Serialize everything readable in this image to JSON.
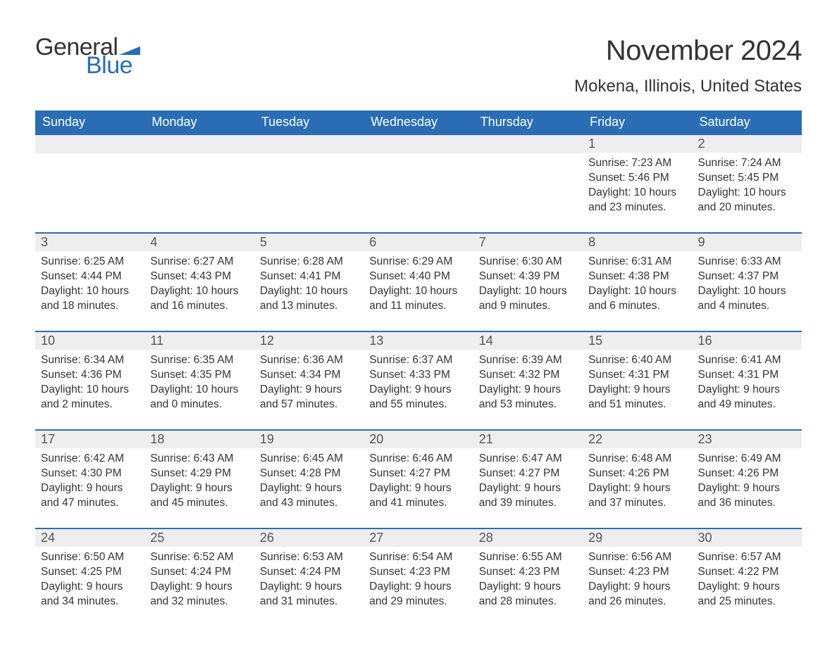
{
  "brand": {
    "word1": "General",
    "word2": "Blue",
    "flag_color": "#2a6db5"
  },
  "title": "November 2024",
  "location": "Mokena, Illinois, United States",
  "colors": {
    "header_bg": "#2a6db5",
    "header_text": "#ffffff",
    "week_border": "#2a6db5",
    "daynum_bg": "#eeeeee",
    "text": "#333333"
  },
  "day_labels": [
    "Sunday",
    "Monday",
    "Tuesday",
    "Wednesday",
    "Thursday",
    "Friday",
    "Saturday"
  ],
  "labels": {
    "sunrise": "Sunrise:",
    "sunset": "Sunset:",
    "daylight": "Daylight:"
  },
  "weeks": [
    [
      null,
      null,
      null,
      null,
      null,
      {
        "n": "1",
        "sunrise": "7:23 AM",
        "sunset": "5:46 PM",
        "daylight": "10 hours and 23 minutes."
      },
      {
        "n": "2",
        "sunrise": "7:24 AM",
        "sunset": "5:45 PM",
        "daylight": "10 hours and 20 minutes."
      }
    ],
    [
      {
        "n": "3",
        "sunrise": "6:25 AM",
        "sunset": "4:44 PM",
        "daylight": "10 hours and 18 minutes."
      },
      {
        "n": "4",
        "sunrise": "6:27 AM",
        "sunset": "4:43 PM",
        "daylight": "10 hours and 16 minutes."
      },
      {
        "n": "5",
        "sunrise": "6:28 AM",
        "sunset": "4:41 PM",
        "daylight": "10 hours and 13 minutes."
      },
      {
        "n": "6",
        "sunrise": "6:29 AM",
        "sunset": "4:40 PM",
        "daylight": "10 hours and 11 minutes."
      },
      {
        "n": "7",
        "sunrise": "6:30 AM",
        "sunset": "4:39 PM",
        "daylight": "10 hours and 9 minutes."
      },
      {
        "n": "8",
        "sunrise": "6:31 AM",
        "sunset": "4:38 PM",
        "daylight": "10 hours and 6 minutes."
      },
      {
        "n": "9",
        "sunrise": "6:33 AM",
        "sunset": "4:37 PM",
        "daylight": "10 hours and 4 minutes."
      }
    ],
    [
      {
        "n": "10",
        "sunrise": "6:34 AM",
        "sunset": "4:36 PM",
        "daylight": "10 hours and 2 minutes."
      },
      {
        "n": "11",
        "sunrise": "6:35 AM",
        "sunset": "4:35 PM",
        "daylight": "10 hours and 0 minutes."
      },
      {
        "n": "12",
        "sunrise": "6:36 AM",
        "sunset": "4:34 PM",
        "daylight": "9 hours and 57 minutes."
      },
      {
        "n": "13",
        "sunrise": "6:37 AM",
        "sunset": "4:33 PM",
        "daylight": "9 hours and 55 minutes."
      },
      {
        "n": "14",
        "sunrise": "6:39 AM",
        "sunset": "4:32 PM",
        "daylight": "9 hours and 53 minutes."
      },
      {
        "n": "15",
        "sunrise": "6:40 AM",
        "sunset": "4:31 PM",
        "daylight": "9 hours and 51 minutes."
      },
      {
        "n": "16",
        "sunrise": "6:41 AM",
        "sunset": "4:31 PM",
        "daylight": "9 hours and 49 minutes."
      }
    ],
    [
      {
        "n": "17",
        "sunrise": "6:42 AM",
        "sunset": "4:30 PM",
        "daylight": "9 hours and 47 minutes."
      },
      {
        "n": "18",
        "sunrise": "6:43 AM",
        "sunset": "4:29 PM",
        "daylight": "9 hours and 45 minutes."
      },
      {
        "n": "19",
        "sunrise": "6:45 AM",
        "sunset": "4:28 PM",
        "daylight": "9 hours and 43 minutes."
      },
      {
        "n": "20",
        "sunrise": "6:46 AM",
        "sunset": "4:27 PM",
        "daylight": "9 hours and 41 minutes."
      },
      {
        "n": "21",
        "sunrise": "6:47 AM",
        "sunset": "4:27 PM",
        "daylight": "9 hours and 39 minutes."
      },
      {
        "n": "22",
        "sunrise": "6:48 AM",
        "sunset": "4:26 PM",
        "daylight": "9 hours and 37 minutes."
      },
      {
        "n": "23",
        "sunrise": "6:49 AM",
        "sunset": "4:26 PM",
        "daylight": "9 hours and 36 minutes."
      }
    ],
    [
      {
        "n": "24",
        "sunrise": "6:50 AM",
        "sunset": "4:25 PM",
        "daylight": "9 hours and 34 minutes."
      },
      {
        "n": "25",
        "sunrise": "6:52 AM",
        "sunset": "4:24 PM",
        "daylight": "9 hours and 32 minutes."
      },
      {
        "n": "26",
        "sunrise": "6:53 AM",
        "sunset": "4:24 PM",
        "daylight": "9 hours and 31 minutes."
      },
      {
        "n": "27",
        "sunrise": "6:54 AM",
        "sunset": "4:23 PM",
        "daylight": "9 hours and 29 minutes."
      },
      {
        "n": "28",
        "sunrise": "6:55 AM",
        "sunset": "4:23 PM",
        "daylight": "9 hours and 28 minutes."
      },
      {
        "n": "29",
        "sunrise": "6:56 AM",
        "sunset": "4:23 PM",
        "daylight": "9 hours and 26 minutes."
      },
      {
        "n": "30",
        "sunrise": "6:57 AM",
        "sunset": "4:22 PM",
        "daylight": "9 hours and 25 minutes."
      }
    ]
  ]
}
